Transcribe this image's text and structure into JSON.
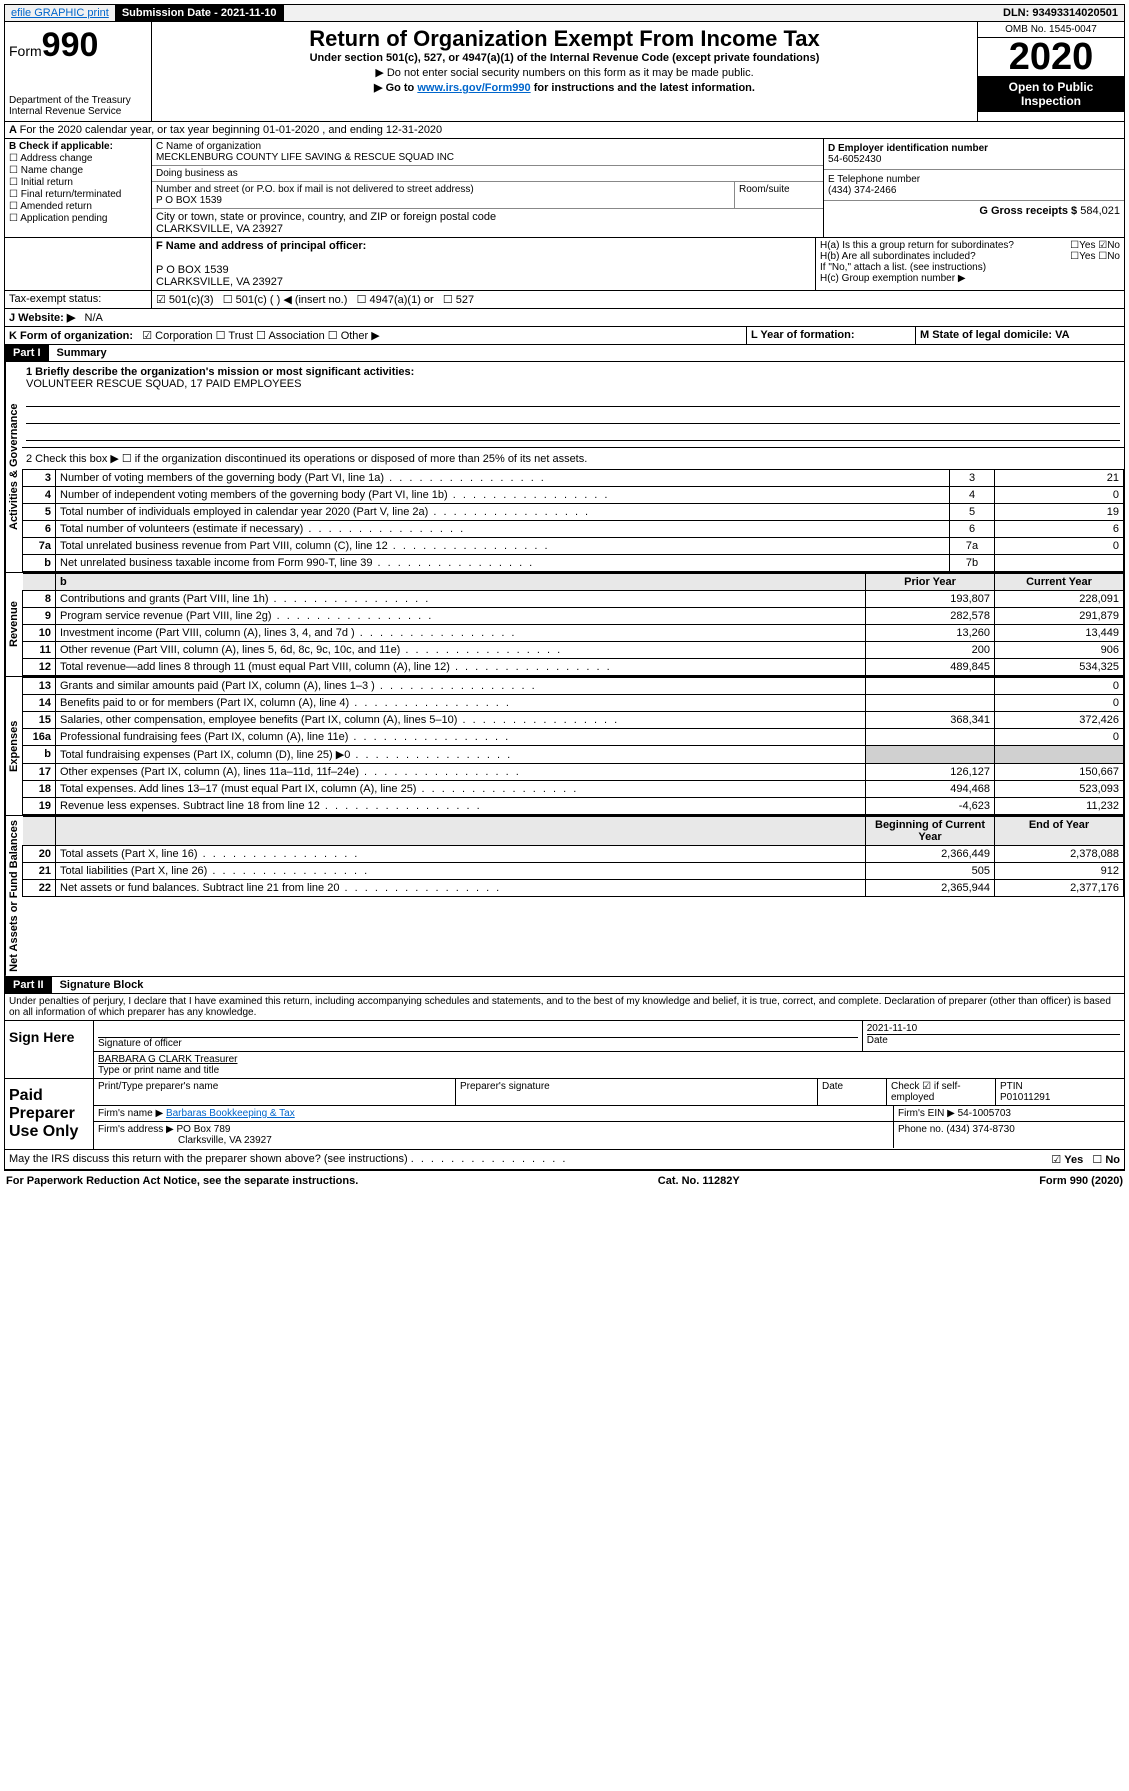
{
  "topbar": {
    "efile": "efile GRAPHIC print",
    "sub_label": "Submission Date - 2021-11-10",
    "dln": "DLN: 93493314020501"
  },
  "header": {
    "form_label": "Form",
    "form_num": "990",
    "dept1": "Department of the Treasury",
    "dept2": "Internal Revenue Service",
    "title": "Return of Organization Exempt From Income Tax",
    "sub": "Under section 501(c), 527, or 4947(a)(1) of the Internal Revenue Code (except private foundations)",
    "note1": "▶ Do not enter social security numbers on this form as it may be made public.",
    "note2_pre": "▶ Go to ",
    "note2_link": "www.irs.gov/Form990",
    "note2_post": " for instructions and the latest information.",
    "omb": "OMB No. 1545-0047",
    "year": "2020",
    "inspect1": "Open to Public",
    "inspect2": "Inspection"
  },
  "periodA": "For the 2020 calendar year, or tax year beginning 01-01-2020    , and ending 12-31-2020",
  "boxB": {
    "title": "B Check if applicable:",
    "o1": "Address change",
    "o2": "Name change",
    "o3": "Initial return",
    "o4": "Final return/terminated",
    "o5": "Amended return",
    "o6": "Application pending"
  },
  "boxC": {
    "l1": "C Name of organization",
    "name": "MECKLENBURG COUNTY LIFE SAVING & RESCUE SQUAD INC",
    "dba": "Doing business as",
    "addr_l": "Number and street (or P.O. box if mail is not delivered to street address)",
    "room": "Room/suite",
    "addr": "P O BOX 1539",
    "city_l": "City or town, state or province, country, and ZIP or foreign postal code",
    "city": "CLARKSVILLE, VA  23927"
  },
  "boxD": {
    "l": "D Employer identification number",
    "v": "54-6052430"
  },
  "boxE": {
    "l": "E Telephone number",
    "v": "(434) 374-2466"
  },
  "boxG": {
    "l": "G Gross receipts $",
    "v": "584,021"
  },
  "boxF": {
    "l": "F Name and address of principal officer:",
    "a1": "P O BOX 1539",
    "a2": "CLARKSVILLE, VA  23927"
  },
  "boxH": {
    "a": "H(a)  Is this a group return for subordinates?",
    "b": "H(b)  Are all subordinates included?",
    "bnote": "If \"No,\" attach a list. (see instructions)",
    "c": "H(c)  Group exemption number ▶",
    "yes": "Yes",
    "no": "No"
  },
  "taxStatus": {
    "l": "Tax-exempt status:",
    "o1": "501(c)(3)",
    "o2": "501(c) ( ) ◀ (insert no.)",
    "o3": "4947(a)(1) or",
    "o4": "527"
  },
  "websiteJ": {
    "l": "J   Website: ▶",
    "v": "N/A"
  },
  "lineK": {
    "pre": "K Form of organization:",
    "o1": "Corporation",
    "o2": "Trust",
    "o3": "Association",
    "o4": "Other ▶",
    "L": "L Year of formation:",
    "M": "M State of legal domicile: VA"
  },
  "part1": {
    "label": "Part I",
    "title": "Summary"
  },
  "side": {
    "ag": "Activities & Governance",
    "rev": "Revenue",
    "exp": "Expenses",
    "net": "Net Assets or Fund Balances"
  },
  "q1": {
    "l": "1  Briefly describe the organization's mission or most significant activities:",
    "v": "VOLUNTEER RESCUE SQUAD, 17 PAID EMPLOYEES"
  },
  "q2": "2    Check this box ▶ ☐  if the organization discontinued its operations or disposed of more than 25% of its net assets.",
  "lines_ag": [
    {
      "n": "3",
      "d": "Number of voting members of the governing body (Part VI, line 1a)",
      "b": "3",
      "v": "21"
    },
    {
      "n": "4",
      "d": "Number of independent voting members of the governing body (Part VI, line 1b)",
      "b": "4",
      "v": "0"
    },
    {
      "n": "5",
      "d": "Total number of individuals employed in calendar year 2020 (Part V, line 2a)",
      "b": "5",
      "v": "19"
    },
    {
      "n": "6",
      "d": "Total number of volunteers (estimate if necessary)",
      "b": "6",
      "v": "6"
    },
    {
      "n": "7a",
      "d": "Total unrelated business revenue from Part VIII, column (C), line 12",
      "b": "7a",
      "v": "0"
    },
    {
      "n": "b",
      "d": "Net unrelated business taxable income from Form 990-T, line 39",
      "b": "7b",
      "v": ""
    }
  ],
  "cols": {
    "prior": "Prior Year",
    "current": "Current Year"
  },
  "lines_rev": [
    {
      "n": "8",
      "d": "Contributions and grants (Part VIII, line 1h)",
      "p": "193,807",
      "c": "228,091"
    },
    {
      "n": "9",
      "d": "Program service revenue (Part VIII, line 2g)",
      "p": "282,578",
      "c": "291,879"
    },
    {
      "n": "10",
      "d": "Investment income (Part VIII, column (A), lines 3, 4, and 7d )",
      "p": "13,260",
      "c": "13,449"
    },
    {
      "n": "11",
      "d": "Other revenue (Part VIII, column (A), lines 5, 6d, 8c, 9c, 10c, and 11e)",
      "p": "200",
      "c": "906"
    },
    {
      "n": "12",
      "d": "Total revenue—add lines 8 through 11 (must equal Part VIII, column (A), line 12)",
      "p": "489,845",
      "c": "534,325"
    }
  ],
  "lines_exp": [
    {
      "n": "13",
      "d": "Grants and similar amounts paid (Part IX, column (A), lines 1–3 )",
      "p": "",
      "c": "0"
    },
    {
      "n": "14",
      "d": "Benefits paid to or for members (Part IX, column (A), line 4)",
      "p": "",
      "c": "0"
    },
    {
      "n": "15",
      "d": "Salaries, other compensation, employee benefits (Part IX, column (A), lines 5–10)",
      "p": "368,341",
      "c": "372,426"
    },
    {
      "n": "16a",
      "d": "Professional fundraising fees (Part IX, column (A), line 11e)",
      "p": "",
      "c": "0"
    },
    {
      "n": "b",
      "d": "Total fundraising expenses (Part IX, column (D), line 25) ▶0",
      "p": "—shade—",
      "c": "—shade—"
    },
    {
      "n": "17",
      "d": "Other expenses (Part IX, column (A), lines 11a–11d, 11f–24e)",
      "p": "126,127",
      "c": "150,667"
    },
    {
      "n": "18",
      "d": "Total expenses. Add lines 13–17 (must equal Part IX, column (A), line 25)",
      "p": "494,468",
      "c": "523,093"
    },
    {
      "n": "19",
      "d": "Revenue less expenses. Subtract line 18 from line 12",
      "p": "-4,623",
      "c": "11,232"
    }
  ],
  "cols2": {
    "beg": "Beginning of Current Year",
    "end": "End of Year"
  },
  "lines_net": [
    {
      "n": "20",
      "d": "Total assets (Part X, line 16)",
      "p": "2,366,449",
      "c": "2,378,088"
    },
    {
      "n": "21",
      "d": "Total liabilities (Part X, line 26)",
      "p": "505",
      "c": "912"
    },
    {
      "n": "22",
      "d": "Net assets or fund balances. Subtract line 21 from line 20",
      "p": "2,365,944",
      "c": "2,377,176"
    }
  ],
  "part2": {
    "label": "Part II",
    "title": "Signature Block"
  },
  "perjury": "Under penalties of perjury, I declare that I have examined this return, including accompanying schedules and statements, and to the best of my knowledge and belief, it is true, correct, and complete. Declaration of preparer (other than officer) is based on all information of which preparer has any knowledge.",
  "sign": {
    "here": "Sign Here",
    "sig_of": "Signature of officer",
    "date_l": "Date",
    "date_v": "2021-11-10",
    "name": "BARBARA G CLARK  Treasurer",
    "name_l": "Type or print name and title"
  },
  "paid": {
    "title": "Paid Preparer Use Only",
    "c1": "Print/Type preparer's name",
    "c2": "Preparer's signature",
    "c3": "Date",
    "c4_pre": "Check",
    "c4_post": "if self-employed",
    "ptin_l": "PTIN",
    "ptin": "P01011291",
    "firm_l": "Firm's name    ▶",
    "firm": "Barbaras Bookkeeping & Tax",
    "ein_l": "Firm's EIN ▶",
    "ein": "54-1005703",
    "addr_l": "Firm's address ▶",
    "addr1": "PO Box 789",
    "addr2": "Clarksville, VA  23927",
    "phone_l": "Phone no.",
    "phone": "(434) 374-8730"
  },
  "discuss": "May the IRS discuss this return with the preparer shown above? (see instructions)",
  "footer": {
    "l": "For Paperwork Reduction Act Notice, see the separate instructions.",
    "m": "Cat. No. 11282Y",
    "r": "Form 990 (2020)"
  }
}
